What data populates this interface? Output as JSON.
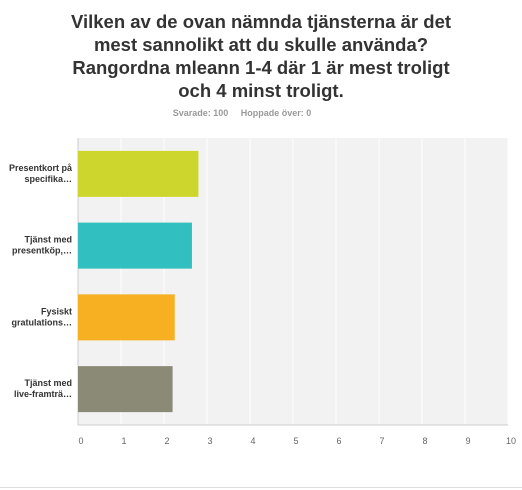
{
  "question": {
    "title_lines": [
      "Vilken av de ovan nämnda tjänsterna är det",
      "mest sannolikt att du skulle använda?",
      "Rangordna mleann 1-4 där 1 är mest troligt",
      "och 4 minst troligt."
    ],
    "answered": "Svarade: 100",
    "skipped": "Hoppade över: 0"
  },
  "chart_data": {
    "type": "bar",
    "orientation": "horizontal",
    "categories": [
      [
        "Presentkort på",
        "specifika…"
      ],
      [
        "Tjänst med",
        "presentköp,…"
      ],
      [
        "Fysiskt",
        "gratulations…"
      ],
      [
        "Tjänst med",
        "live-framträ…"
      ]
    ],
    "values": [
      2.8,
      2.65,
      2.25,
      2.2
    ],
    "colors": [
      "#cdd62c",
      "#31bfbf",
      "#f6b022",
      "#8a8a77"
    ],
    "xlim": [
      0,
      10
    ],
    "xticks": [
      0,
      1,
      2,
      3,
      4,
      5,
      6,
      7,
      8,
      9,
      10
    ],
    "grid": true,
    "title": "",
    "xlabel": "",
    "ylabel": ""
  }
}
